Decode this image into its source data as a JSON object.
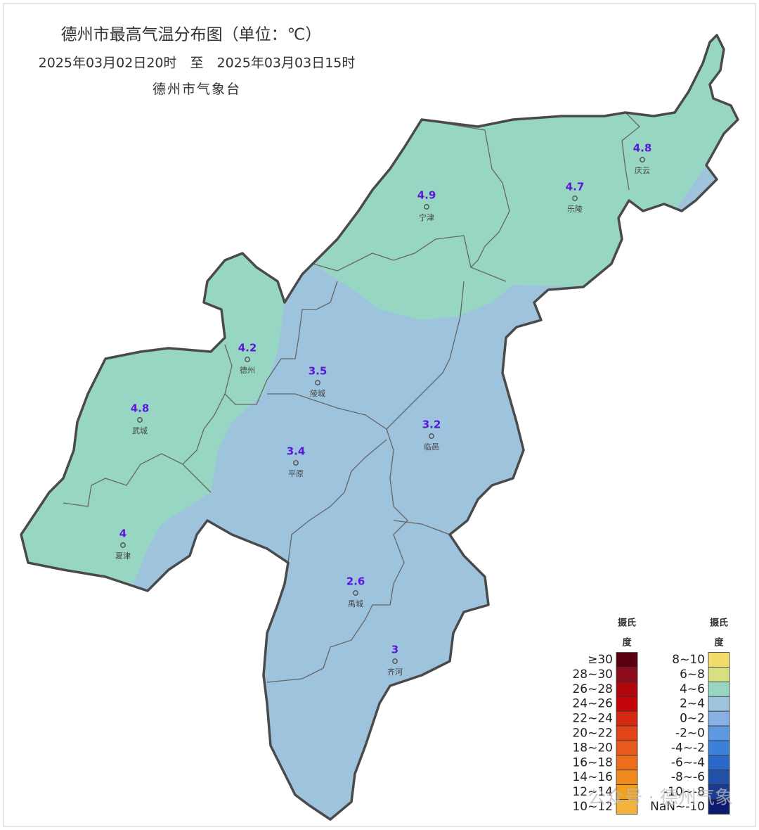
{
  "header": {
    "title": "德州市最高气温分布图（单位：℃）",
    "period": "2025年03月02日20时　至　2025年03月03日15时",
    "issuer": "德州市气象台"
  },
  "stations": [
    {
      "name": "宁津",
      "value": 4.9
    },
    {
      "name": "乐陵",
      "value": 4.7
    },
    {
      "name": "庆云",
      "value": 4.8
    },
    {
      "name": "德州",
      "value": 4.2
    },
    {
      "name": "陵城",
      "value": 3.5
    },
    {
      "name": "武城",
      "value": 4.8
    },
    {
      "name": "临邑",
      "value": 3.2
    },
    {
      "name": "平原",
      "value": 3.4
    },
    {
      "name": "夏津",
      "value": 4
    },
    {
      "name": "禹城",
      "value": 2.6
    },
    {
      "name": "齐河",
      "value": 3
    }
  ],
  "legend": {
    "unit": [
      "摄氏",
      "度"
    ],
    "columns": [
      [
        {
          "label": "≥30",
          "color": "#5c0011"
        },
        {
          "label": "28~30",
          "color": "#8b0a1c"
        },
        {
          "label": "26~28",
          "color": "#b0060e"
        },
        {
          "label": "24~26",
          "color": "#c4060a"
        },
        {
          "label": "22~24",
          "color": "#d42a12"
        },
        {
          "label": "20~22",
          "color": "#e04418"
        },
        {
          "label": "18~20",
          "color": "#e85a1c"
        },
        {
          "label": "16~18",
          "color": "#ec6e1c"
        },
        {
          "label": "14~16",
          "color": "#f08a1c"
        },
        {
          "label": "12~14",
          "color": "#f0a01a"
        },
        {
          "label": "10~12",
          "color": "#f4b43c"
        }
      ],
      [
        {
          "label": "8~10",
          "color": "#f4dc6c"
        },
        {
          "label": "6~8",
          "color": "#d6e080"
        },
        {
          "label": "4~6",
          "color": "#98d6c4"
        },
        {
          "label": "2~4",
          "color": "#9dc3dd"
        },
        {
          "label": "0~2",
          "color": "#88b0e4"
        },
        {
          "label": "-2~0",
          "color": "#5e98e0"
        },
        {
          "label": "-4~-2",
          "color": "#3c80d8"
        },
        {
          "label": "-6~-4",
          "color": "#2c68c8"
        },
        {
          "label": "-8~-6",
          "color": "#2050a8"
        },
        {
          "label": "-10~-8",
          "color": "#1a3c90"
        },
        {
          "label": "NaN~-10",
          "color": "#0c1a70"
        }
      ]
    ]
  },
  "watermark": "公众号 · 德州气象"
}
